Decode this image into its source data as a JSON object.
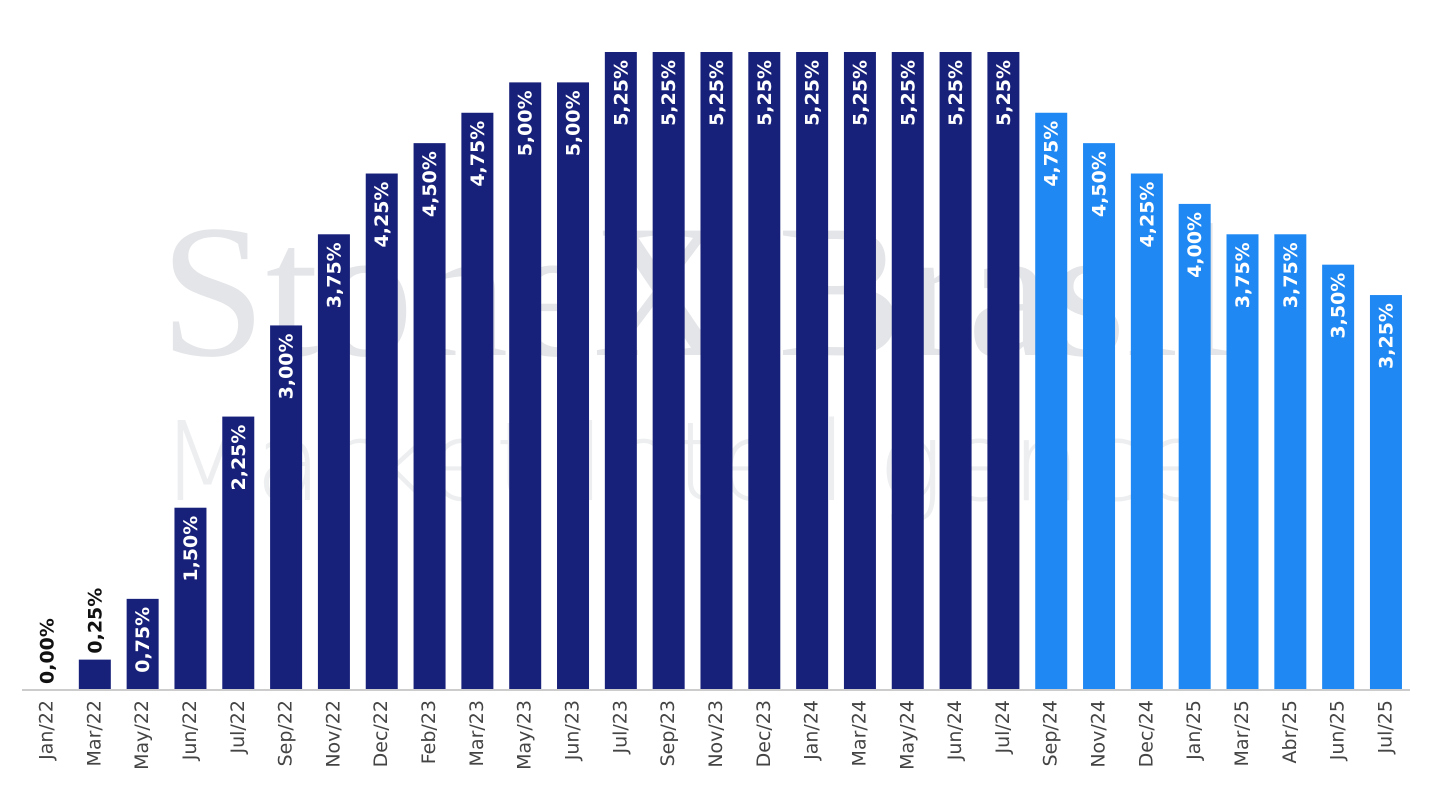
{
  "chart_data": {
    "type": "bar",
    "watermark": [
      "StoneX Brasil",
      "Market Intelligence"
    ],
    "categories": [
      "Jan/22",
      "Mar/22",
      "May/22",
      "Jun/22",
      "Jul/22",
      "Sep/22",
      "Nov/22",
      "Dec/22",
      "Feb/23",
      "Mar/23",
      "May/23",
      "Jun/23",
      "Jul/23",
      "Sep/23",
      "Nov/23",
      "Dec/23",
      "Jan/24",
      "Mar/24",
      "May/24",
      "Jun/24",
      "Jul/24",
      "Sep/24",
      "Nov/24",
      "Dec/24",
      "Jan/25",
      "Mar/25",
      "Abr/25",
      "Jun/25",
      "Jul/25"
    ],
    "values": [
      0,
      0.25,
      0.75,
      1.5,
      2.25,
      3,
      3.75,
      4.25,
      4.5,
      4.75,
      5,
      5,
      5.25,
      5.25,
      5.25,
      5.25,
      5.25,
      5.25,
      5.25,
      5.25,
      5.25,
      4.75,
      4.5,
      4.25,
      4,
      3.75,
      3.75,
      3.5,
      3.25
    ],
    "value_labels": [
      "0,00%",
      "0,25%",
      "0,75%",
      "1,50%",
      "2,25%",
      "3,00%",
      "3,75%",
      "4,25%",
      "4,50%",
      "4,75%",
      "5,00%",
      "5,00%",
      "5,25%",
      "5,25%",
      "5,25%",
      "5,25%",
      "5,25%",
      "5,25%",
      "5,25%",
      "5,25%",
      "5,25%",
      "4,75%",
      "4,50%",
      "4,25%",
      "4,00%",
      "3,75%",
      "3,75%",
      "3,50%",
      "3,25%"
    ],
    "colors": [
      "#18217a",
      "#18217a",
      "#18217a",
      "#18217a",
      "#18217a",
      "#18217a",
      "#18217a",
      "#18217a",
      "#18217a",
      "#18217a",
      "#18217a",
      "#18217a",
      "#18217a",
      "#18217a",
      "#18217a",
      "#18217a",
      "#18217a",
      "#18217a",
      "#18217a",
      "#18217a",
      "#18217a",
      "#1f88f2",
      "#1f88f2",
      "#1f88f2",
      "#1f88f2",
      "#1f88f2",
      "#1f88f2",
      "#1f88f2",
      "#1f88f2"
    ],
    "ylim": [
      0,
      5.25
    ]
  }
}
